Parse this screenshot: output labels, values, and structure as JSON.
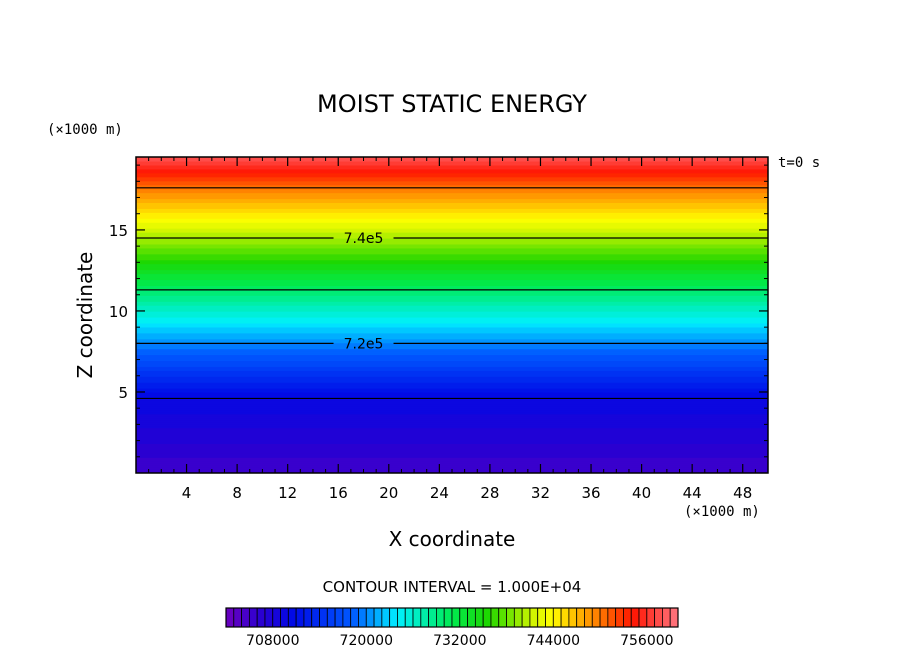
{
  "chart_data": {
    "type": "heatmap",
    "title": "MOIST STATIC ENERGY",
    "time_label": "t=0 s",
    "xlabel": "X coordinate",
    "ylabel": "Z coordinate",
    "x_unit": "(×1000 m)",
    "y_unit": "(×1000 m)",
    "xlim": [
      0,
      50
    ],
    "ylim": [
      0,
      19.5
    ],
    "x_ticks": [
      4,
      8,
      12,
      16,
      20,
      24,
      28,
      32,
      36,
      40,
      44,
      48
    ],
    "y_ticks": [
      5,
      10,
      15
    ],
    "field_by_height": [
      {
        "z": 0.0,
        "value": 705000
      },
      {
        "z": 4.6,
        "value": 710000
      },
      {
        "z": 8.0,
        "value": 720000
      },
      {
        "z": 11.3,
        "value": 730000
      },
      {
        "z": 14.5,
        "value": 740000
      },
      {
        "z": 17.6,
        "value": 750000
      },
      {
        "z": 19.5,
        "value": 758000
      }
    ],
    "contours": [
      {
        "z": 4.6,
        "value": 710000,
        "label": ""
      },
      {
        "z": 8.0,
        "value": 720000,
        "label": "7.2e5"
      },
      {
        "z": 11.3,
        "value": 730000,
        "label": ""
      },
      {
        "z": 14.5,
        "value": 740000,
        "label": "7.4e5"
      },
      {
        "z": 17.6,
        "value": 750000,
        "label": ""
      }
    ],
    "contour_interval_text": "CONTOUR INTERVAL = 1.000E+04",
    "colorbar": {
      "min": 702000,
      "max": 760000,
      "step": 1000,
      "tick_values": [
        708000,
        720000,
        732000,
        744000,
        756000
      ],
      "tick_labels": [
        "708000",
        "720000",
        "732000",
        "744000",
        "756000"
      ]
    }
  }
}
